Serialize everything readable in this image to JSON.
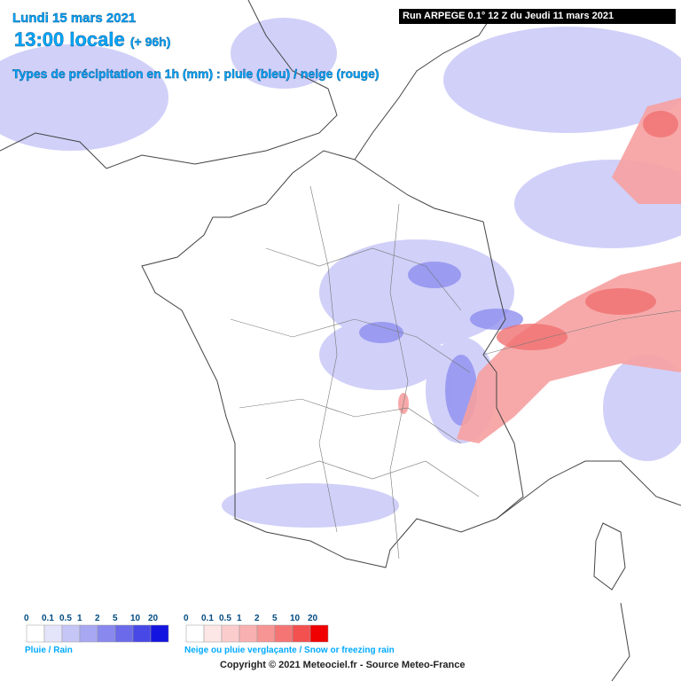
{
  "header": {
    "date": "Lundi 15 mars 2021",
    "time": "13:00 locale",
    "lead": "(+ 96h)",
    "subtitle": "Types de précipitation en 1h (mm) : pluie (bleu) / neige (rouge)",
    "run": "Run ARPEGE 0.1° 12 Z du Jeudi 11 mars 2021"
  },
  "legend_rain": {
    "ticks": [
      "0",
      "0.1",
      "0.5",
      "1",
      "2",
      "5",
      "10",
      "20"
    ],
    "label": "Pluie / Rain"
  },
  "legend_snow": {
    "ticks": [
      "0",
      "0.1",
      "0.5",
      "1",
      "2",
      "5",
      "10",
      "20"
    ],
    "label": "Neige ou pluie verglaçante / Snow or freezing rain"
  },
  "copyright": "Copyright © 2021 Meteociel.fr - Source Meteo-France"
}
